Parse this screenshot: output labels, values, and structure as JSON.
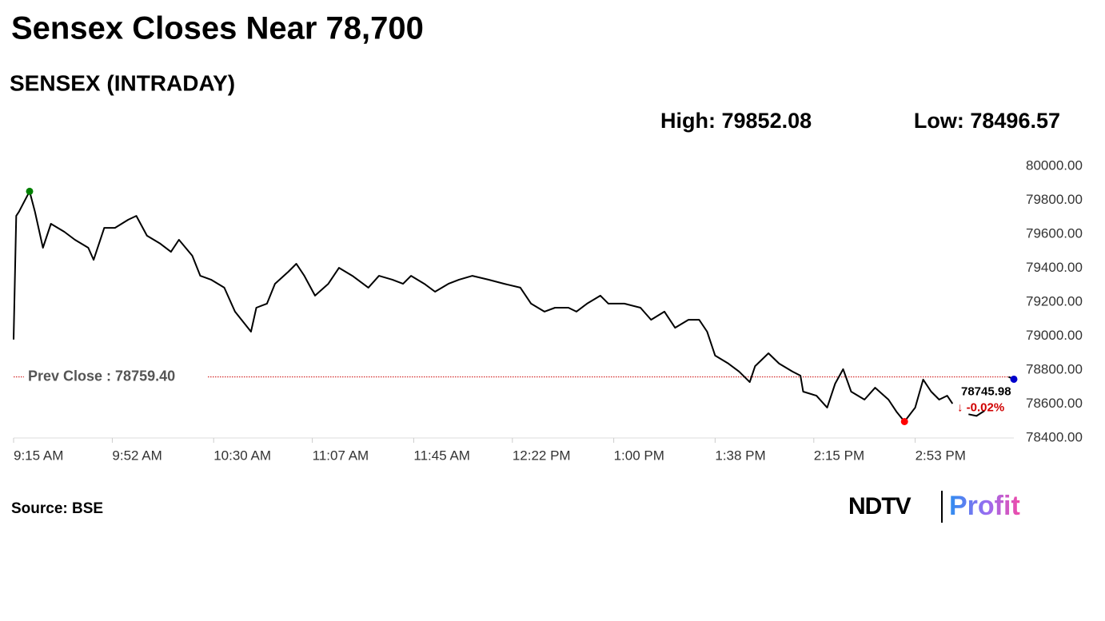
{
  "chart_data": {
    "type": "line",
    "title": "Sensex Closes Near 78,700",
    "subtitle": "SENSEX (INTRADAY)",
    "high_label": "High:",
    "high": 79852.08,
    "low_label": "Low:",
    "low": 78496.57,
    "prev_close": {
      "value": 78759.4,
      "label": "Prev Close : 78759.40"
    },
    "close": 78745.98,
    "change": {
      "value": -0.02,
      "label": "-0.02%"
    },
    "source": "Source: BSE",
    "logo": [
      "NDTV",
      "Profit"
    ],
    "x": [
      "9:15 AM",
      "9:16 AM",
      "9:17 AM",
      "9:21 AM",
      "9:23 AM",
      "9:26 AM",
      "9:29 AM",
      "9:34 AM",
      "9:38 AM",
      "9:43 AM",
      "9:45 AM",
      "9:49 AM",
      "9:53 AM",
      "9:58 AM",
      "10:01 AM",
      "10:05 AM",
      "10:10 AM",
      "10:14 AM",
      "10:17 AM",
      "10:22 AM",
      "10:25 AM",
      "10:29 AM",
      "10:34 AM",
      "10:38 AM",
      "10:44 AM",
      "10:46 AM",
      "10:50 AM",
      "10:53 AM",
      "10:58 AM",
      "11:01 AM",
      "11:04 AM",
      "11:08 AM",
      "11:13 AM",
      "11:17 AM",
      "11:22 AM",
      "11:28 AM",
      "11:32 AM",
      "11:37 AM",
      "11:41 AM",
      "11:44 AM",
      "11:49 AM",
      "11:53 AM",
      "11:58 AM",
      "12:02 PM",
      "12:07 PM",
      "12:13 PM",
      "12:19 PM",
      "12:25 PM",
      "12:29 PM",
      "12:34 PM",
      "12:38 PM",
      "12:43 PM",
      "12:46 PM",
      "12:50 PM",
      "12:55 PM",
      "12:58 PM",
      "1:04 PM",
      "1:10 PM",
      "1:14 PM",
      "1:19 PM",
      "1:23 PM",
      "1:28 PM",
      "1:32 PM",
      "1:35 PM",
      "1:38 PM",
      "1:43 PM",
      "1:47 PM",
      "1:51 PM",
      "1:53 PM",
      "1:58 PM",
      "2:02 PM",
      "2:07 PM",
      "2:10 PM",
      "2:11 PM",
      "2:16 PM",
      "2:20 PM",
      "2:23 PM",
      "2:26 PM",
      "2:29 PM",
      "2:34 PM",
      "2:38 PM",
      "2:43 PM",
      "2:46 PM",
      "2:49 PM",
      "2:53 PM",
      "2:56 PM",
      "2:59 PM",
      "3:02 PM",
      "3:05 PM",
      "3:07 PM",
      "3:10 PM",
      "3:13 PM",
      "3:16 PM",
      "3:19 PM",
      "3:24 PM",
      "3:28 PM",
      "3:30 PM"
    ],
    "series": [
      {
        "name": "SENSEX",
        "color": "#000000",
        "values": [
          78980,
          79708,
          79732,
          79852.08,
          79732,
          79520,
          79661,
          79614,
          79567,
          79520,
          79449,
          79637,
          79637,
          79685,
          79708,
          79591,
          79544,
          79496,
          79567,
          79473,
          79355,
          79332,
          79285,
          79144,
          79026,
          79167,
          79191,
          79308,
          79379,
          79426,
          79355,
          79238,
          79308,
          79402,
          79355,
          79285,
          79355,
          79332,
          79308,
          79355,
          79308,
          79261,
          79308,
          79332,
          79355,
          79332,
          79308,
          79285,
          79191,
          79144,
          79167,
          79167,
          79144,
          79191,
          79238,
          79191,
          79191,
          79167,
          79096,
          79144,
          79049,
          79096,
          79096,
          79026,
          78885,
          78838,
          78791,
          78729,
          78823,
          78899,
          78838,
          78791,
          78767,
          78673,
          78649,
          78579,
          78720,
          78805,
          78673,
          78626,
          78696,
          78626,
          78555,
          78496.57,
          78579,
          78744,
          78673,
          78626,
          78649,
          78602,
          null,
          78540,
          78530,
          78560,
          null,
          78760,
          78745.98
        ]
      }
    ],
    "xlim": [
      "9:15 AM",
      "3:30 PM"
    ],
    "xticks": [
      "9:15 AM",
      "9:52 AM",
      "10:30 AM",
      "11:07 AM",
      "11:45 AM",
      "12:22 PM",
      "1:00 PM",
      "1:38 PM",
      "2:15 PM",
      "2:53 PM"
    ],
    "ylim": [
      78400,
      80000
    ],
    "yticks": [
      {
        "value": 78400,
        "label": "78400.00"
      },
      {
        "value": 78600,
        "label": "78600.00"
      },
      {
        "value": 78800,
        "label": "78800.00"
      },
      {
        "value": 79000,
        "label": "79000.00"
      },
      {
        "value": 79200,
        "label": "79200.00"
      },
      {
        "value": 79400,
        "label": "79400.00"
      },
      {
        "value": 79600,
        "label": "79600.00"
      },
      {
        "value": 79800,
        "label": "79800.00"
      },
      {
        "value": 80000,
        "label": "80000.00"
      }
    ],
    "high_color": "#008000",
    "low_color": "#ff0000",
    "close_color": "#0000cc",
    "prev_close_color": "#cc0000"
  }
}
